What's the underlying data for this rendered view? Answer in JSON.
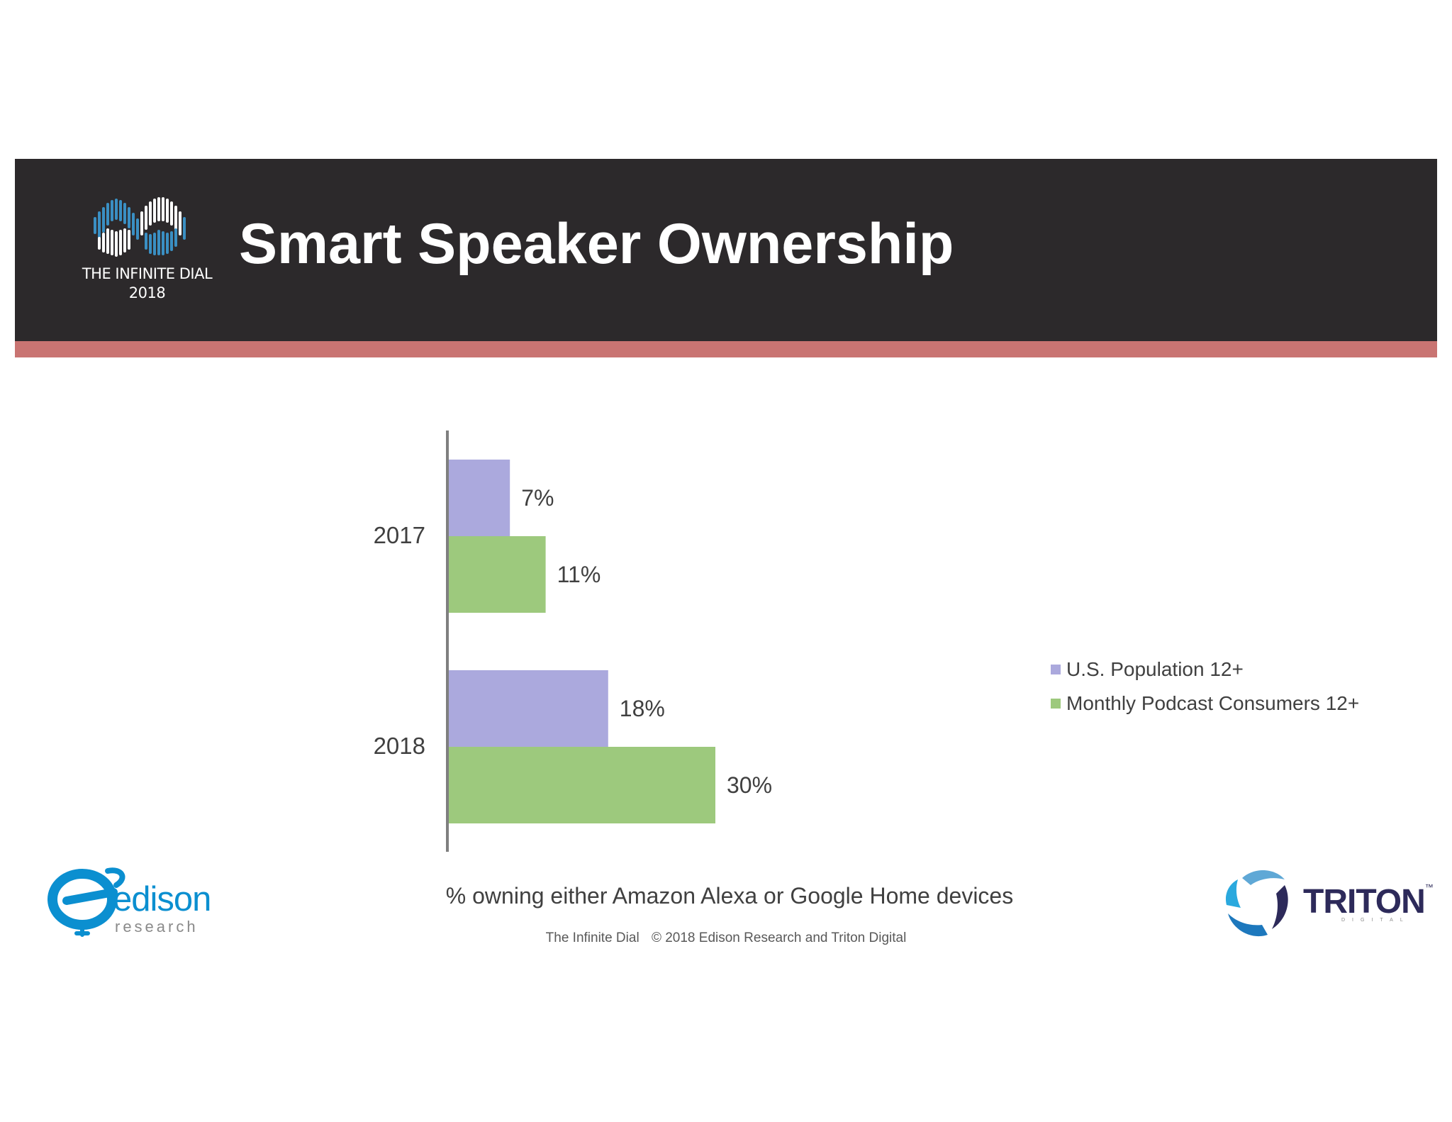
{
  "header": {
    "title": "Smart Speaker Ownership",
    "logo_line1": "THE INFINITE DIAL",
    "logo_line2": "2018"
  },
  "colors": {
    "header_bg": "#2c292b",
    "stripe": "#c97472",
    "series_us": "#aba9dd",
    "series_podcast": "#9dc97d"
  },
  "chart_data": {
    "type": "bar",
    "orientation": "horizontal",
    "categories": [
      "2017",
      "2018"
    ],
    "series": [
      {
        "name": "U.S. Population 12+",
        "values": [
          7,
          18
        ],
        "labels": [
          "7%",
          "18%"
        ],
        "color": "#aba9dd"
      },
      {
        "name": "Monthly Podcast Consumers 12+",
        "values": [
          11,
          30
        ],
        "labels": [
          "11%",
          "30%"
        ],
        "color": "#9dc97d"
      }
    ],
    "xlim": [
      0,
      30
    ],
    "grid": false,
    "legend_position": "right",
    "caption": "% owning either Amazon Alexa or Google Home devices"
  },
  "footer": {
    "left": "The Infinite Dial",
    "right": "© 2018 Edison Research and Triton Digital"
  },
  "logos": {
    "edison_word": "edison",
    "edison_sub": "research",
    "triton_word": "TRITON",
    "triton_sub": "DIGITAL",
    "triton_tm": "™"
  }
}
